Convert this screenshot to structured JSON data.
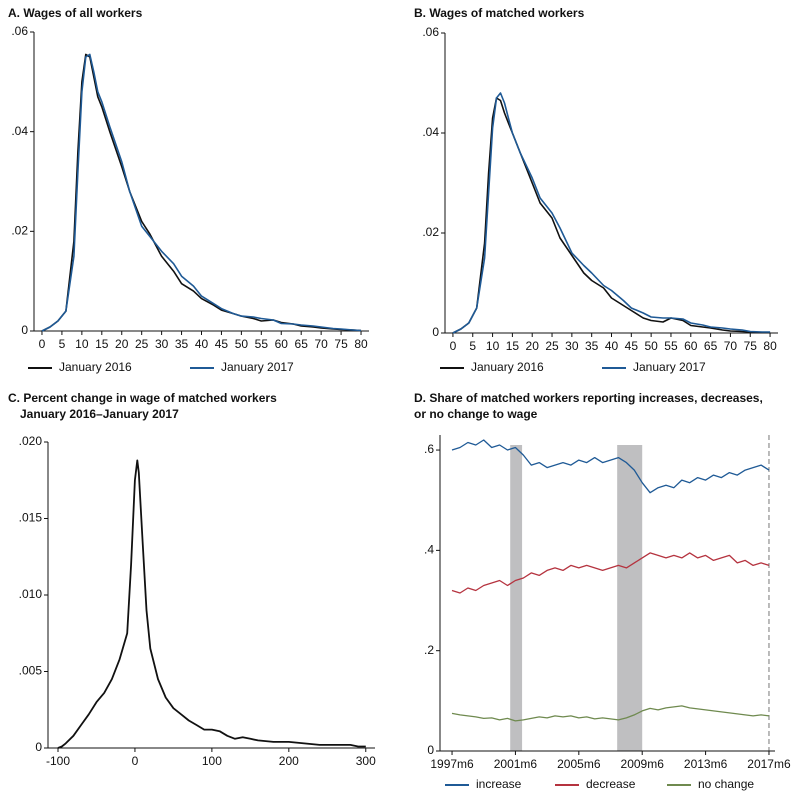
{
  "chart_data": [
    {
      "type": "line",
      "title": [
        "A. Wages of all workers"
      ],
      "x": [
        0,
        2,
        4,
        6,
        8,
        9,
        10,
        11,
        12,
        13,
        14,
        15,
        17,
        20,
        22,
        25,
        27,
        30,
        33,
        35,
        38,
        40,
        43,
        45,
        48,
        50,
        53,
        55,
        58,
        60,
        63,
        65,
        68,
        70,
        73,
        75,
        78,
        80
      ],
      "series": [
        {
          "name": "January 2016",
          "color": "#111111",
          "values": [
            0,
            0.0008,
            0.002,
            0.004,
            0.018,
            0.036,
            0.05,
            0.0555,
            0.055,
            0.051,
            0.047,
            0.045,
            0.04,
            0.033,
            0.028,
            0.022,
            0.0195,
            0.015,
            0.012,
            0.0095,
            0.008,
            0.0065,
            0.0052,
            0.0042,
            0.0035,
            0.003,
            0.0025,
            0.002,
            0.0022,
            0.0017,
            0.0014,
            0.001,
            0.0008,
            0.0006,
            0.0004,
            0.0003,
            0.0002,
            0.0001
          ]
        },
        {
          "name": "January 2017",
          "color": "#1f5a96",
          "values": [
            0,
            0.0008,
            0.002,
            0.004,
            0.015,
            0.032,
            0.048,
            0.055,
            0.0555,
            0.052,
            0.048,
            0.046,
            0.041,
            0.034,
            0.028,
            0.021,
            0.019,
            0.016,
            0.0135,
            0.011,
            0.009,
            0.007,
            0.0055,
            0.0045,
            0.0035,
            0.003,
            0.0028,
            0.0025,
            0.0022,
            0.0015,
            0.0014,
            0.0012,
            0.001,
            0.0008,
            0.0005,
            0.0004,
            0.0002,
            0.0001
          ]
        }
      ],
      "xlim": [
        -2,
        82
      ],
      "xticks": [
        0,
        5,
        10,
        15,
        20,
        25,
        30,
        35,
        40,
        45,
        50,
        55,
        60,
        65,
        70,
        75,
        80
      ],
      "ylim": [
        0,
        0.06
      ],
      "yticks": [
        0,
        {
          "value": 0.02,
          "label": ".02"
        },
        {
          "value": 0.04,
          "label": ".04"
        },
        {
          "value": 0.06,
          "label": ".06"
        }
      ]
    },
    {
      "type": "line",
      "title": [
        "B. Wages of matched workers"
      ],
      "x": [
        0,
        2,
        4,
        6,
        8,
        9,
        10,
        11,
        12,
        13,
        14,
        15,
        17,
        20,
        22,
        25,
        27,
        30,
        33,
        35,
        38,
        40,
        43,
        45,
        48,
        50,
        53,
        55,
        58,
        60,
        63,
        65,
        68,
        70,
        73,
        75,
        78,
        80
      ],
      "series": [
        {
          "name": "January 2016",
          "color": "#111111",
          "values": [
            0,
            0.0008,
            0.002,
            0.005,
            0.018,
            0.032,
            0.043,
            0.047,
            0.0465,
            0.044,
            0.042,
            0.04,
            0.036,
            0.03,
            0.026,
            0.023,
            0.019,
            0.0155,
            0.012,
            0.0105,
            0.009,
            0.007,
            0.0055,
            0.0045,
            0.003,
            0.0025,
            0.0022,
            0.003,
            0.0025,
            0.0015,
            0.0012,
            0.001,
            0.0006,
            0.0004,
            0.0003,
            0.0002,
            0.0001,
            0.0001
          ]
        },
        {
          "name": "January 2017",
          "color": "#1f5a96",
          "values": [
            0,
            0.0008,
            0.002,
            0.005,
            0.015,
            0.028,
            0.041,
            0.047,
            0.048,
            0.046,
            0.043,
            0.04,
            0.036,
            0.031,
            0.027,
            0.024,
            0.021,
            0.016,
            0.0135,
            0.012,
            0.0095,
            0.0085,
            0.0065,
            0.005,
            0.004,
            0.0032,
            0.003,
            0.003,
            0.0028,
            0.002,
            0.0016,
            0.0012,
            0.001,
            0.0008,
            0.0006,
            0.0003,
            0.0002,
            0.0002
          ]
        }
      ],
      "xlim": [
        -2,
        82
      ],
      "xticks": [
        0,
        5,
        10,
        15,
        20,
        25,
        30,
        35,
        40,
        45,
        50,
        55,
        60,
        65,
        70,
        75,
        80
      ],
      "ylim": [
        0,
        0.06
      ],
      "yticks": [
        0,
        {
          "value": 0.02,
          "label": ".02"
        },
        {
          "value": 0.04,
          "label": ".04"
        },
        {
          "value": 0.06,
          "label": ".06"
        }
      ]
    },
    {
      "type": "line",
      "title": [
        "C. Percent change in wage of matched workers",
        "January 2016–January 2017"
      ],
      "x": [
        -100,
        -95,
        -90,
        -80,
        -70,
        -60,
        -50,
        -40,
        -30,
        -20,
        -10,
        -5,
        0,
        3,
        5,
        10,
        15,
        20,
        30,
        40,
        50,
        60,
        70,
        80,
        90,
        100,
        110,
        120,
        130,
        140,
        150,
        160,
        180,
        200,
        220,
        240,
        260,
        280,
        290,
        300
      ],
      "values": [
        0,
        0.0001,
        0.0003,
        0.0008,
        0.0015,
        0.0022,
        0.003,
        0.0036,
        0.0045,
        0.0058,
        0.0075,
        0.012,
        0.0175,
        0.0188,
        0.018,
        0.0135,
        0.009,
        0.0065,
        0.0045,
        0.0033,
        0.0026,
        0.0022,
        0.0018,
        0.0015,
        0.0012,
        0.0012,
        0.0011,
        0.0008,
        0.0006,
        0.0007,
        0.0006,
        0.0005,
        0.0004,
        0.0004,
        0.0003,
        0.0002,
        0.0002,
        0.0002,
        0.0001,
        0.0001
      ],
      "color": "#111111",
      "xlim": [
        -113,
        312
      ],
      "xticks": [
        -100,
        0,
        100,
        200,
        300
      ],
      "ylim": [
        0,
        0.02
      ],
      "yticks": [
        0,
        {
          "value": 0.005,
          "label": ".005"
        },
        {
          "value": 0.01,
          "label": ".010"
        },
        {
          "value": 0.015,
          "label": ".015"
        },
        {
          "value": 0.02,
          "label": ".020"
        }
      ]
    },
    {
      "type": "line",
      "title": [
        "D. Share of matched workers reporting increases, decreases,",
        "or no change to wage"
      ],
      "x": [
        1997.5,
        1998,
        1998.5,
        1999,
        1999.5,
        2000,
        2000.5,
        2001,
        2001.5,
        2002,
        2002.5,
        2003,
        2003.5,
        2004,
        2004.5,
        2005,
        2005.5,
        2006,
        2006.5,
        2007,
        2007.5,
        2008,
        2008.5,
        2009,
        2009.5,
        2010,
        2010.5,
        2011,
        2011.5,
        2012,
        2012.5,
        2013,
        2013.5,
        2014,
        2014.5,
        2015,
        2015.5,
        2016,
        2016.5,
        2017,
        2017.5
      ],
      "series": [
        {
          "name": "increase",
          "color": "#1f5a96",
          "values": [
            0.6,
            0.605,
            0.615,
            0.61,
            0.62,
            0.605,
            0.61,
            0.6,
            0.605,
            0.59,
            0.57,
            0.575,
            0.565,
            0.57,
            0.575,
            0.57,
            0.58,
            0.575,
            0.585,
            0.575,
            0.58,
            0.585,
            0.575,
            0.56,
            0.535,
            0.515,
            0.525,
            0.53,
            0.525,
            0.54,
            0.535,
            0.545,
            0.54,
            0.55,
            0.545,
            0.555,
            0.55,
            0.56,
            0.565,
            0.57,
            0.56
          ]
        },
        {
          "name": "decrease",
          "color": "#b5333f",
          "values": [
            0.32,
            0.315,
            0.325,
            0.32,
            0.33,
            0.335,
            0.34,
            0.33,
            0.34,
            0.345,
            0.355,
            0.35,
            0.36,
            0.365,
            0.36,
            0.37,
            0.365,
            0.37,
            0.365,
            0.36,
            0.365,
            0.37,
            0.365,
            0.375,
            0.385,
            0.395,
            0.39,
            0.385,
            0.39,
            0.385,
            0.395,
            0.385,
            0.39,
            0.38,
            0.385,
            0.39,
            0.375,
            0.38,
            0.37,
            0.375,
            0.37
          ]
        },
        {
          "name": "no change",
          "color": "#6f8a4f",
          "values": [
            0.075,
            0.072,
            0.07,
            0.068,
            0.065,
            0.066,
            0.062,
            0.065,
            0.06,
            0.062,
            0.065,
            0.068,
            0.066,
            0.07,
            0.068,
            0.07,
            0.066,
            0.068,
            0.064,
            0.066,
            0.064,
            0.062,
            0.066,
            0.072,
            0.08,
            0.085,
            0.082,
            0.086,
            0.088,
            0.09,
            0.086,
            0.084,
            0.082,
            0.08,
            0.078,
            0.076,
            0.074,
            0.072,
            0.07,
            0.072,
            0.07
          ]
        }
      ],
      "shaded": [
        [
          2001.17,
          2001.92
        ],
        [
          2007.92,
          2009.5
        ]
      ],
      "shade_color": "#bfbfc1",
      "vline": 2017.5,
      "xlim": [
        1996.74,
        2017.88
      ],
      "xticks": [
        {
          "value": 1997.5,
          "label": "1997m6"
        },
        {
          "value": 2001.5,
          "label": "2001m6"
        },
        {
          "value": 2005.5,
          "label": "2005m6"
        },
        {
          "value": 2009.5,
          "label": "2009m6"
        },
        {
          "value": 2013.5,
          "label": "2013m6"
        },
        {
          "value": 2017.5,
          "label": "2017m6"
        }
      ],
      "ylim": [
        0,
        0.63
      ],
      "yticks": [
        0,
        {
          "value": 0.2,
          "label": ".2"
        },
        {
          "value": 0.4,
          "label": ".4"
        },
        {
          "value": 0.6,
          "label": ".6"
        }
      ]
    }
  ]
}
